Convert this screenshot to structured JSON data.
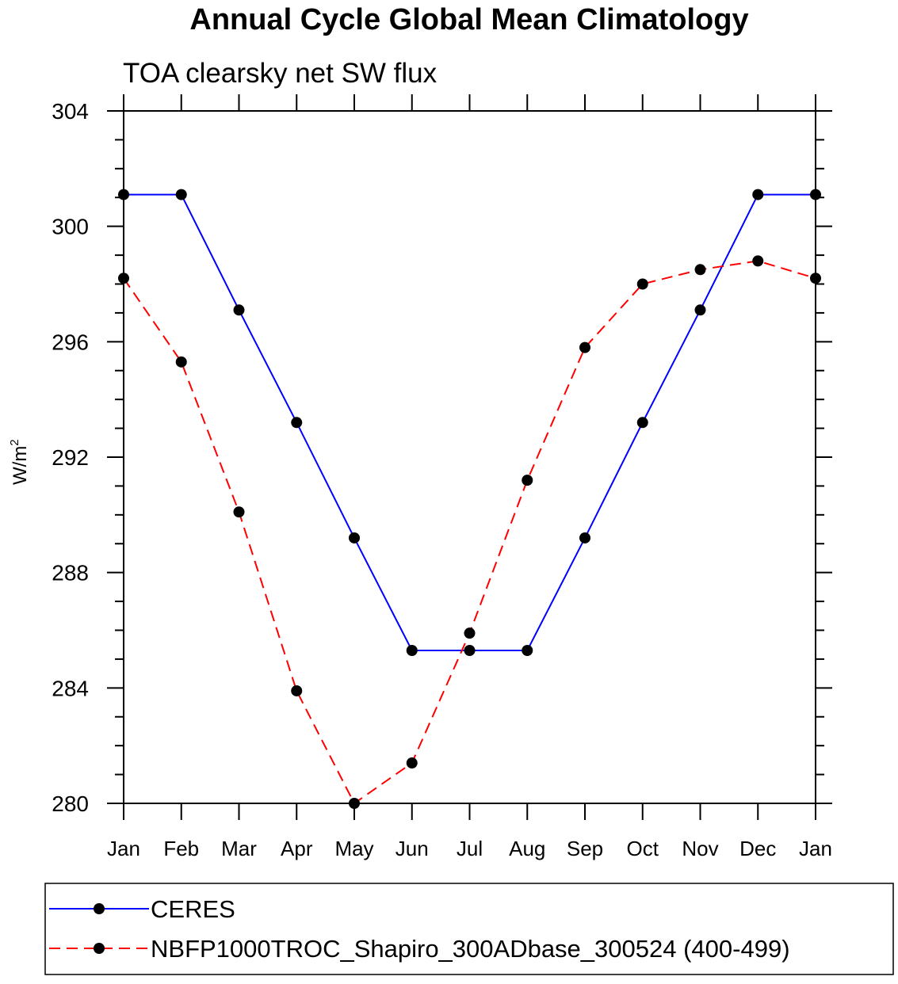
{
  "chart_data": {
    "type": "line",
    "title": "Annual Cycle Global Mean Climatology",
    "subtitle": "TOA clearsky net SW flux",
    "xlabel": "",
    "ylabel": "W/m",
    "ylabel_superscript": "2",
    "categories": [
      "Jan",
      "Feb",
      "Mar",
      "Apr",
      "May",
      "Jun",
      "Jul",
      "Aug",
      "Sep",
      "Oct",
      "Nov",
      "Dec",
      "Jan"
    ],
    "ylim": [
      280,
      304
    ],
    "yticks": [
      280,
      284,
      288,
      292,
      296,
      300,
      304
    ],
    "yminor_step": 1,
    "grid": false,
    "legend_position": "bottom",
    "series": [
      {
        "name": "CERES",
        "color": "#0000ff",
        "dash": "solid",
        "values": [
          301.1,
          301.1,
          297.1,
          293.2,
          289.2,
          285.3,
          285.3,
          285.3,
          289.2,
          293.2,
          297.1,
          301.1,
          301.1
        ]
      },
      {
        "name": "NBFP1000TROC_Shapiro_300ADbase_300524 (400-499)",
        "color": "#ff0000",
        "dash": "dashed",
        "values": [
          298.2,
          295.3,
          290.1,
          283.9,
          280.0,
          281.4,
          285.9,
          291.2,
          295.8,
          298.0,
          298.5,
          298.8,
          298.2
        ]
      }
    ]
  }
}
